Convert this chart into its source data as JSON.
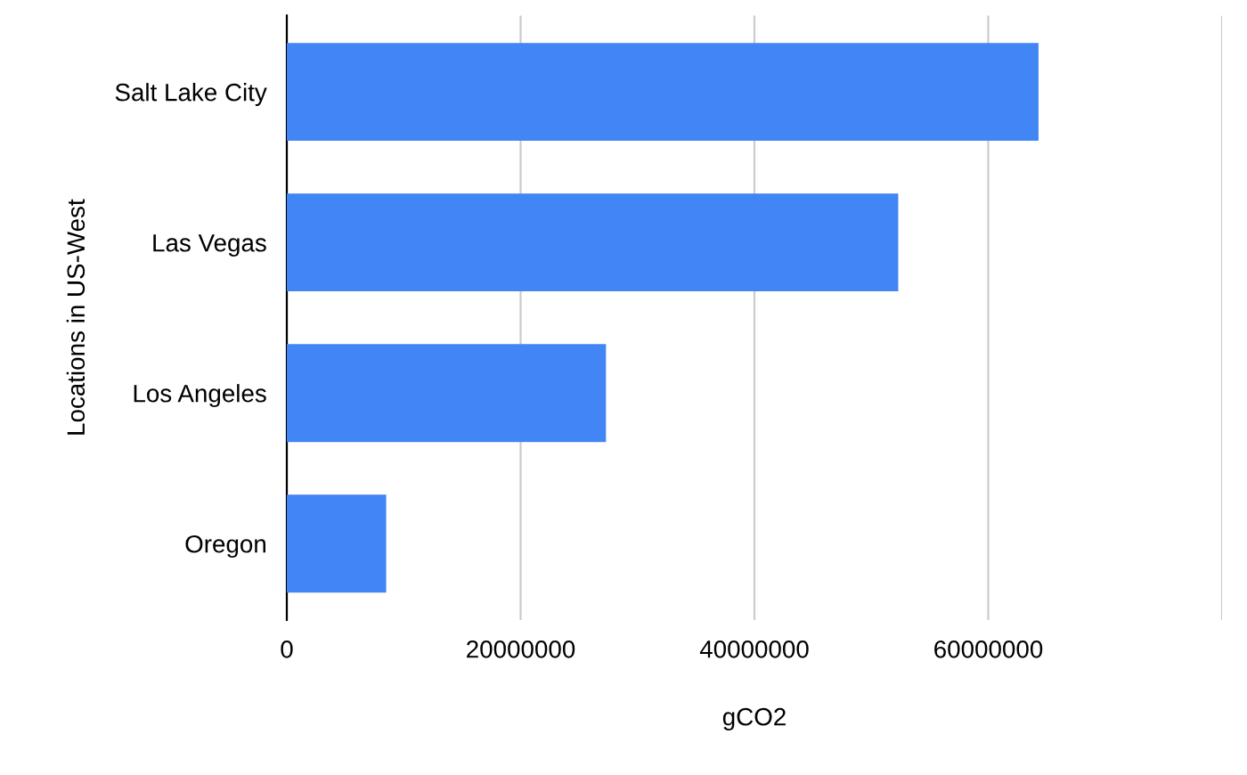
{
  "chart_data": {
    "type": "bar",
    "orientation": "horizontal",
    "xlabel": "gCO2",
    "ylabel": "Locations in US-West",
    "categories": [
      "Salt Lake City",
      "Las Vegas",
      "Los Angeles",
      "Oregon"
    ],
    "values": [
      64300000,
      52300000,
      27300000,
      8500000
    ],
    "color": "#4285f4",
    "xlim": [
      0,
      80000000
    ],
    "xticks": [
      0,
      20000000,
      40000000,
      60000000,
      {
        "value": 80000000,
        "label": null
      }
    ],
    "grid": "x"
  }
}
